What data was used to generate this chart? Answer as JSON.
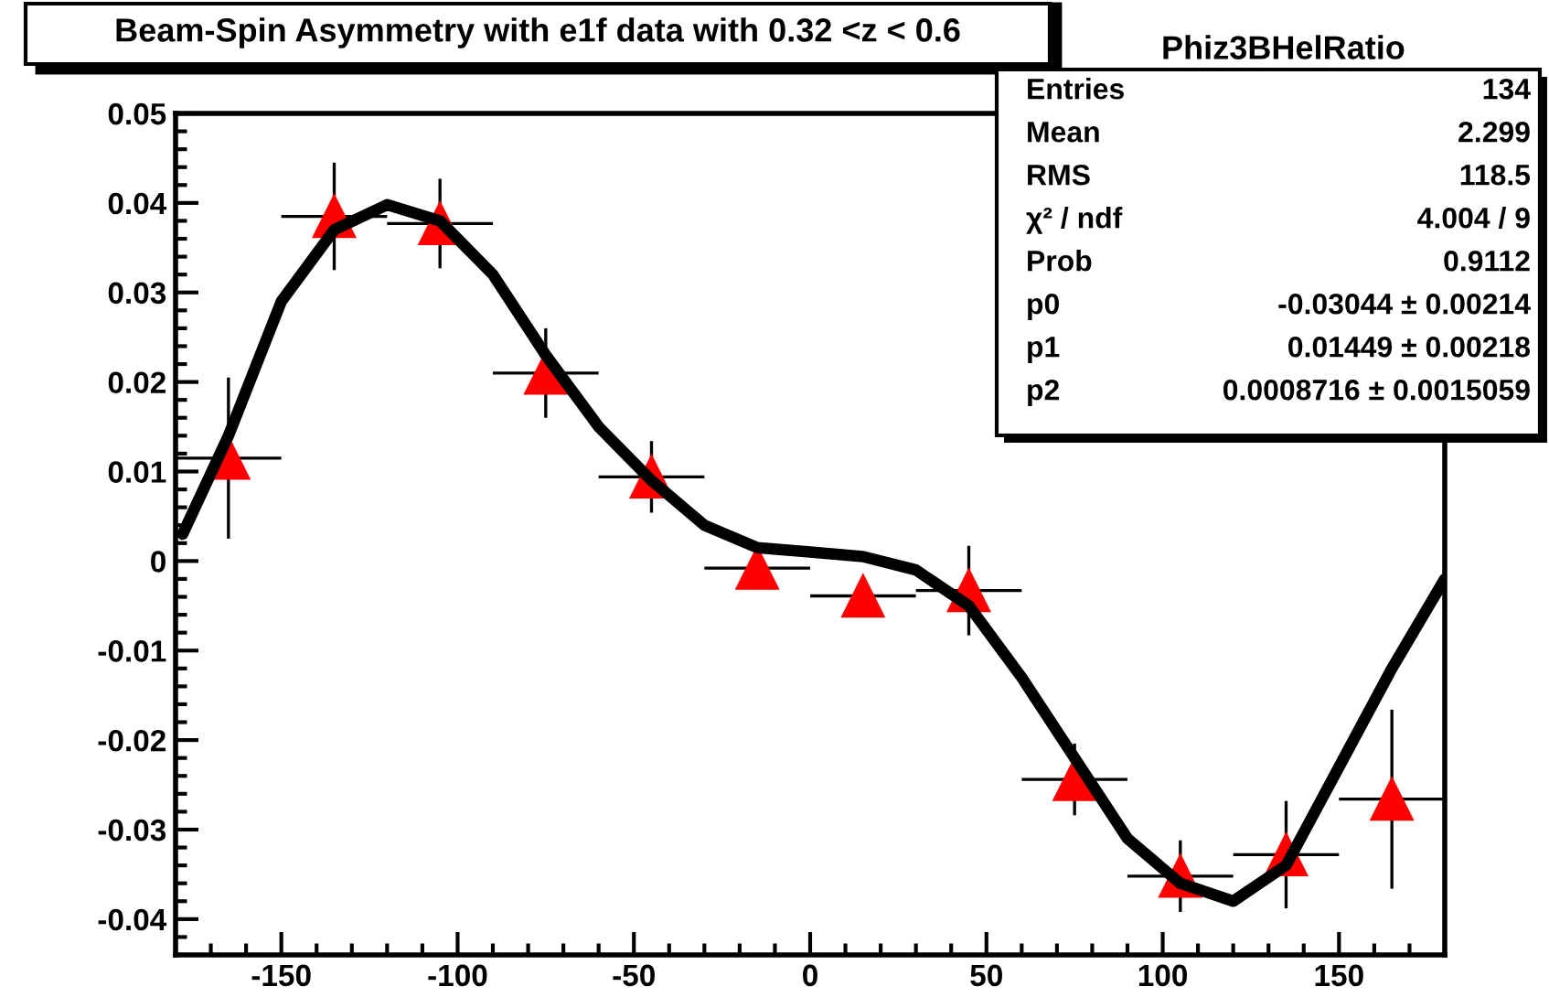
{
  "chart_data": {
    "type": "scatter",
    "title": "Beam-Spin Asymmetry with e1f data with 0.32 <z < 0.6",
    "x": [
      -165,
      -135,
      -105,
      -75,
      -45,
      -15,
      15,
      45,
      75,
      105,
      135,
      165
    ],
    "xlim": [
      -180,
      180
    ],
    "ylim": [
      -0.044,
      0.05
    ],
    "xticks": [
      -150,
      -100,
      -50,
      0,
      50,
      100,
      150
    ],
    "yticks": [
      {
        "value": -0.04,
        "label": "-0.04"
      },
      {
        "value": -0.03,
        "label": "-0.03"
      },
      {
        "value": -0.02,
        "label": "-0.02"
      },
      {
        "value": -0.01,
        "label": "-0.01"
      },
      {
        "value": 0,
        "label": "0"
      },
      {
        "value": 0.01,
        "label": "0.01"
      },
      {
        "value": 0.02,
        "label": "0.02"
      },
      {
        "value": 0.03,
        "label": "0.03"
      },
      {
        "value": 0.04,
        "label": "0.04"
      },
      {
        "value": 0.05,
        "label": "0.05"
      }
    ],
    "grid": false,
    "legend": false,
    "marker": "triangle",
    "series": [
      {
        "color": "#ff0000",
        "values": [
          0.0115,
          0.0385,
          0.0377,
          0.021,
          0.0094,
          -0.0008,
          -0.0039,
          -0.0033,
          -0.0244,
          -0.0352,
          -0.0328,
          -0.0266
        ],
        "errors": [
          0.009,
          0.006,
          0.005,
          0.005,
          0.004,
          null,
          null,
          0.005,
          0.004,
          0.004,
          0.006,
          0.01
        ],
        "xerrors": [
          15,
          15,
          15,
          15,
          15,
          15,
          15,
          15,
          15,
          15,
          15,
          15
        ]
      },
      {
        "type": "line",
        "color": "#000000",
        "marker": "none",
        "line_style": "solid",
        "x": [
          -178,
          -165,
          -150,
          -135,
          -120,
          -105,
          -90,
          -75,
          -60,
          -45,
          -30,
          -15,
          0,
          15,
          30,
          45,
          60,
          75,
          90,
          105,
          120,
          135,
          150,
          165,
          180
        ],
        "values": [
          0.003,
          0.014,
          0.029,
          0.037,
          0.0398,
          0.038,
          0.032,
          0.023,
          0.015,
          0.009,
          0.004,
          0.0015,
          0.001,
          0.0005,
          -0.001,
          -0.005,
          -0.013,
          -0.022,
          -0.031,
          -0.036,
          -0.038,
          -0.034,
          -0.023,
          -0.012,
          -0.002
        ]
      }
    ],
    "annotations": [
      "Phiz3BHelRatio",
      "Entries",
      "134",
      "Mean",
      "2.299",
      "RMS",
      "118.5",
      "χ² / ndf",
      "4.004 / 9",
      "Prob",
      "0.9112",
      "p0",
      "-0.03044 ± 0.00214",
      "p1",
      "0.01449 ± 0.00218",
      "p2",
      "0.0008716 ± 0.0015059"
    ]
  }
}
